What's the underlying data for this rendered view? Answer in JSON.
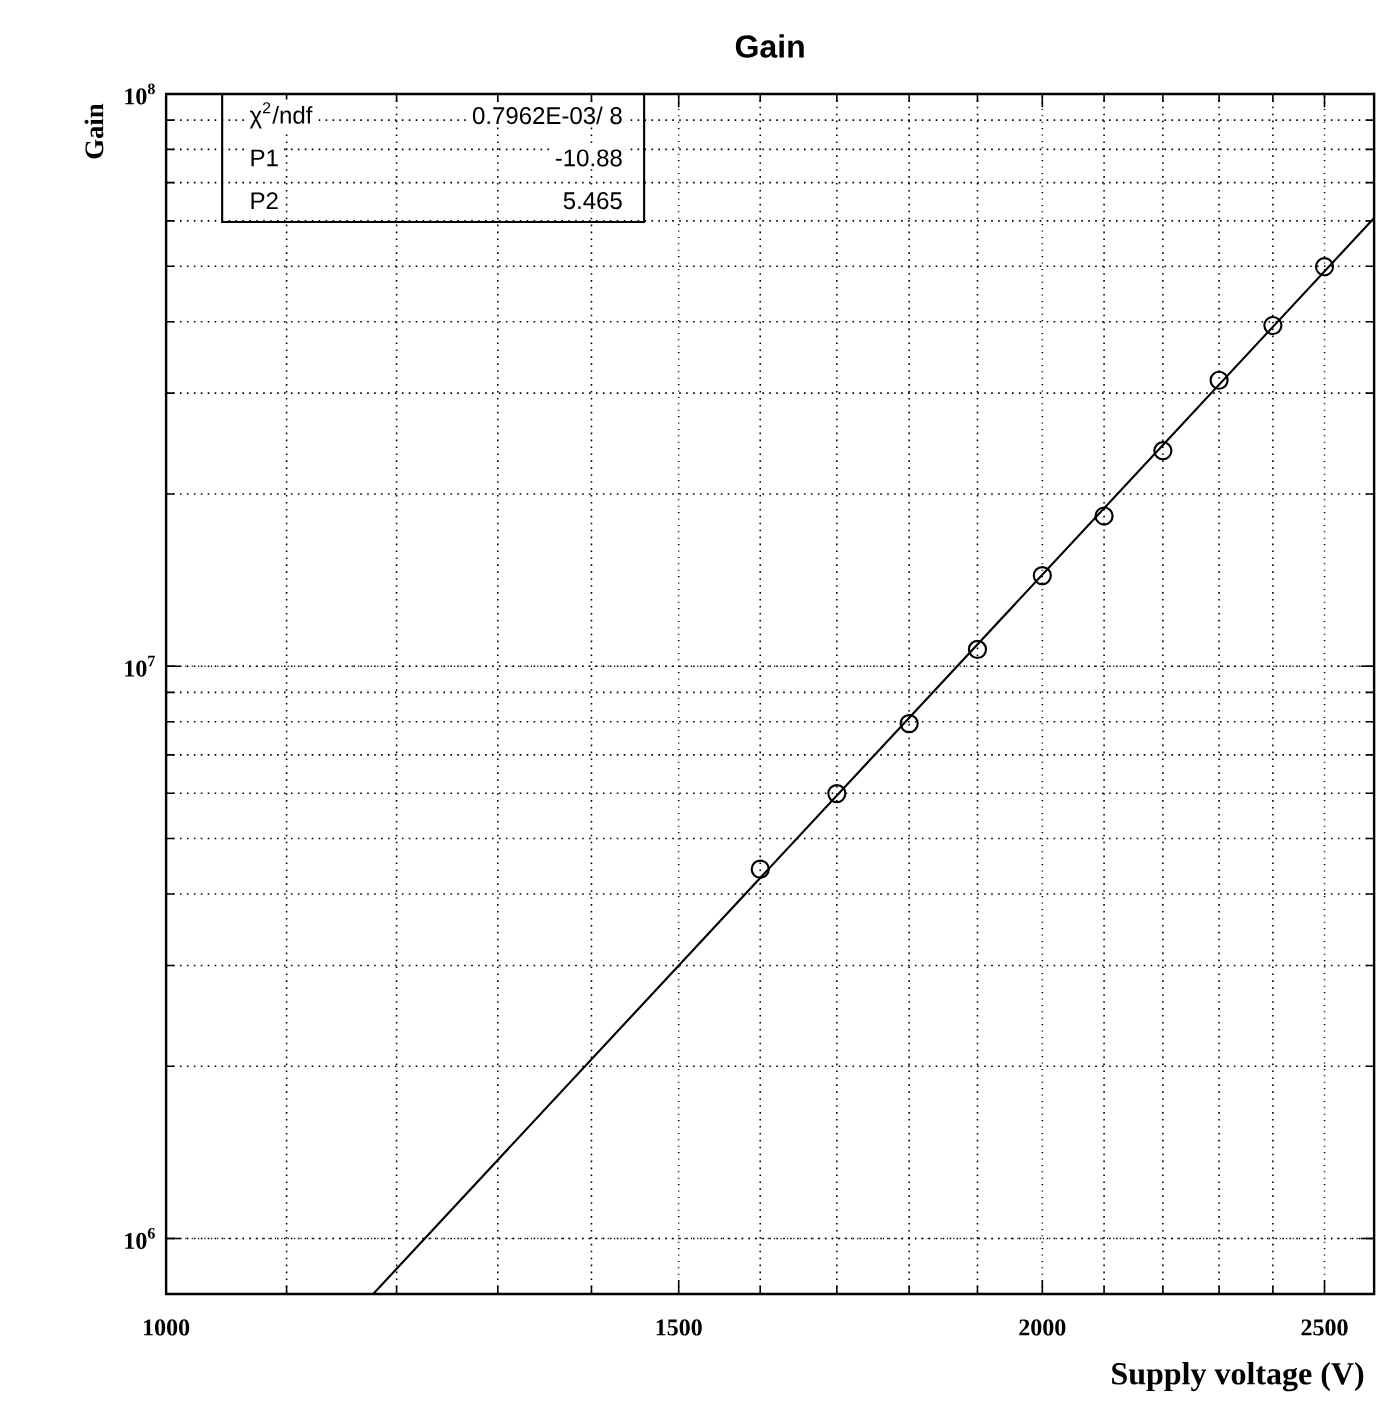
{
  "chart_data": {
    "type": "scatter",
    "title": "Gain",
    "xlabel": "Supply voltage (V)",
    "ylabel": "Gain",
    "log": "xy",
    "xlim": [
      1000,
      2600
    ],
    "ylim": [
      800000,
      100000000
    ],
    "xticks": [
      1000,
      1500,
      2000,
      2500
    ],
    "yticks": [
      {
        "value": 1000000,
        "label": "10$^{6}$"
      },
      {
        "value": 10000000,
        "label": "10$^{7}$"
      },
      {
        "value": 100000000,
        "label": "10$^{8}$"
      }
    ],
    "grid": true,
    "annotations": [
      "χ$^{2}$/ndf",
      "0.7962E-03/      8",
      "P1",
      "-10.88",
      "P2",
      "5.465"
    ],
    "series": [
      {
        "marker": "circle",
        "color": "#000000",
        "x": [
          1600,
          1700,
          1800,
          1900,
          2000,
          2100,
          2200,
          2300,
          2400,
          2500
        ],
        "values": [
          4420000,
          5990000,
          7940000,
          10700000,
          14400000,
          18300000,
          23800000,
          31600000,
          39400000,
          49900000
        ]
      },
      {
        "type": "line",
        "marker": "none",
        "color": "#000000",
        "x": [
          1178,
          2600
        ],
        "values": [
          800000,
          60700000
        ]
      }
    ]
  }
}
